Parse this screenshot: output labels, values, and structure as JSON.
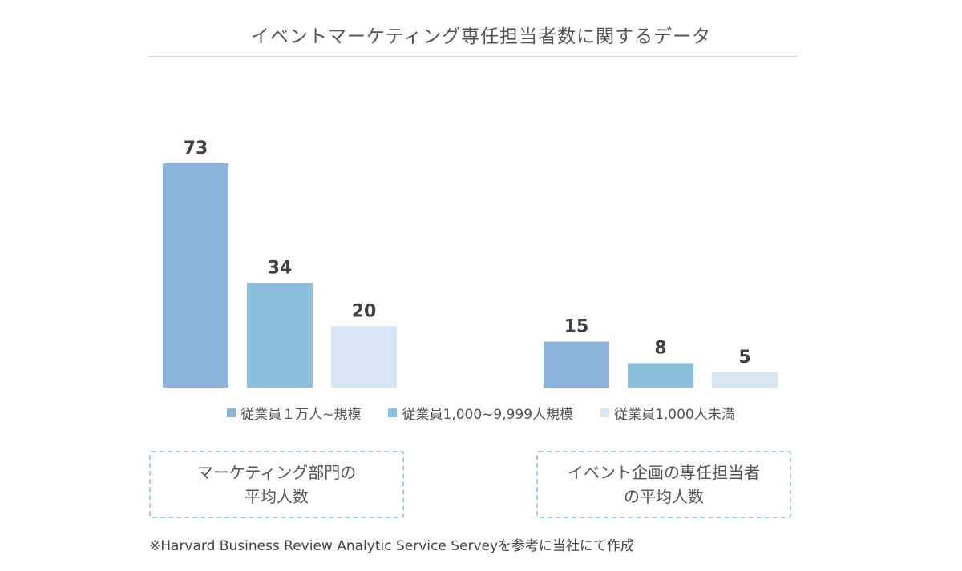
{
  "chart_data": {
    "type": "bar",
    "title": "イベントマーケティング専任担当者数に関するデータ",
    "categories": [
      "マーケティング部門の\n平均人数",
      "イベント企画の専任担当者\nの平均人数"
    ],
    "series": [
      {
        "name": "従業員１万人~規模",
        "values": [
          73,
          15
        ],
        "color": "#8db4dd"
      },
      {
        "name": "従業員1,000~9,999人規模",
        "values": [
          34,
          8
        ],
        "color": "#8bbfdb"
      },
      {
        "name": "従業員1,000人未満",
        "values": [
          20,
          5
        ],
        "color": "#d6e6f4"
      }
    ],
    "ylim": [
      0,
      73
    ],
    "grid": false,
    "legend_position": "bottom"
  },
  "footnote": "※Harvard Business Review Analytic Service Serveyを参考に当社にて作成"
}
